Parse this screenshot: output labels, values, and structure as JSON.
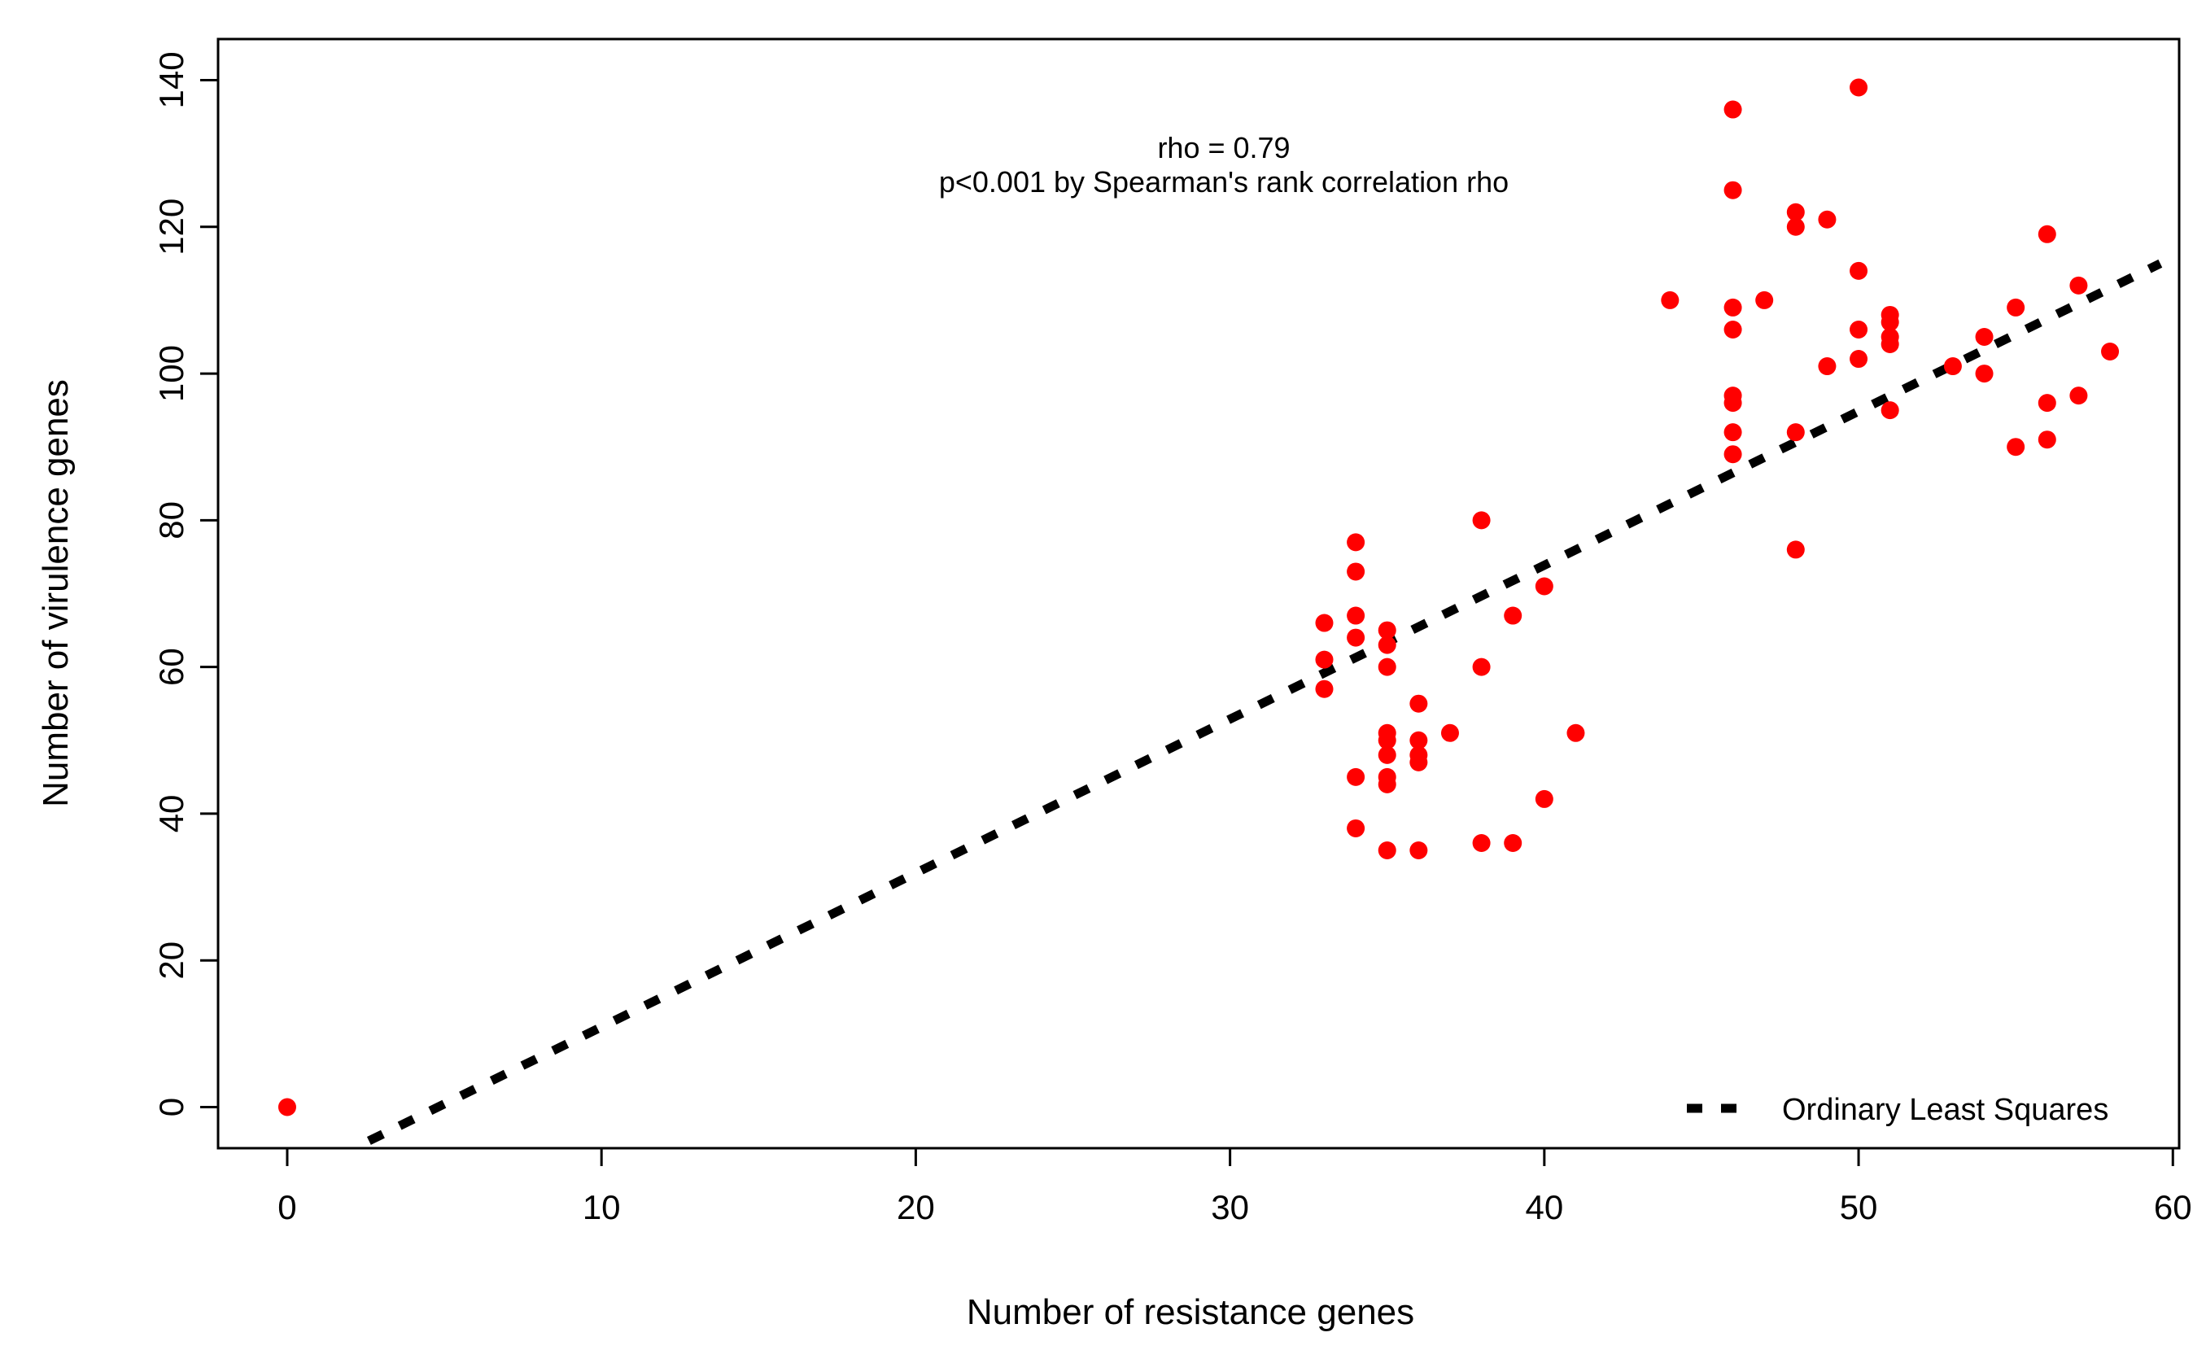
{
  "chart_data": {
    "type": "scatter",
    "xlabel": "Number of resistance genes",
    "ylabel": "Number of virulence genes",
    "xlim": [
      -2.2,
      60.2
    ],
    "ylim": [
      -5.6,
      145.6
    ],
    "xticks": [
      0,
      10,
      20,
      30,
      40,
      50,
      60
    ],
    "yticks": [
      0,
      20,
      40,
      60,
      80,
      100,
      120,
      140
    ],
    "xtick_labels": [
      "0",
      "10",
      "20",
      "30",
      "40",
      "50",
      "60"
    ],
    "ytick_labels": [
      "0",
      "20",
      "40",
      "60",
      "80",
      "100",
      "120",
      "140"
    ],
    "grid": false,
    "annotations": [
      "rho = 0.79",
      "p<0.001 by Spearman's rank correlation rho"
    ],
    "legend": {
      "position": "bottom-right",
      "entries": [
        "Ordinary Least Squares"
      ]
    },
    "point_color": "#ff0000",
    "line_color": "#000000",
    "series": [
      {
        "type": "scatter",
        "points": [
          [
            0,
            0
          ],
          [
            33,
            66
          ],
          [
            33,
            61
          ],
          [
            33,
            57
          ],
          [
            34,
            77
          ],
          [
            34,
            73
          ],
          [
            34,
            67
          ],
          [
            34,
            64
          ],
          [
            34,
            45
          ],
          [
            34,
            38
          ],
          [
            35,
            65
          ],
          [
            35,
            63
          ],
          [
            35,
            60
          ],
          [
            35,
            51
          ],
          [
            35,
            50
          ],
          [
            35,
            48
          ],
          [
            35,
            45
          ],
          [
            35,
            44
          ],
          [
            35,
            35
          ],
          [
            36,
            55
          ],
          [
            36,
            50
          ],
          [
            36,
            48
          ],
          [
            36,
            47
          ],
          [
            36,
            35
          ],
          [
            37,
            51
          ],
          [
            38,
            80
          ],
          [
            38,
            60
          ],
          [
            38,
            36
          ],
          [
            39,
            67
          ],
          [
            39,
            36
          ],
          [
            40,
            71
          ],
          [
            40,
            42
          ],
          [
            41,
            51
          ],
          [
            44,
            110
          ],
          [
            46,
            136
          ],
          [
            46,
            125
          ],
          [
            46,
            109
          ],
          [
            46,
            106
          ],
          [
            46,
            97
          ],
          [
            46,
            96
          ],
          [
            46,
            92
          ],
          [
            46,
            89
          ],
          [
            47,
            110
          ],
          [
            48,
            122
          ],
          [
            48,
            120
          ],
          [
            48,
            92
          ],
          [
            48,
            76
          ],
          [
            49,
            121
          ],
          [
            49,
            101
          ],
          [
            50,
            139
          ],
          [
            50,
            114
          ],
          [
            50,
            106
          ],
          [
            50,
            102
          ],
          [
            51,
            108
          ],
          [
            51,
            107
          ],
          [
            51,
            105
          ],
          [
            51,
            104
          ],
          [
            51,
            95
          ],
          [
            53,
            101
          ],
          [
            54,
            105
          ],
          [
            54,
            100
          ],
          [
            55,
            109
          ],
          [
            55,
            90
          ],
          [
            56,
            119
          ],
          [
            56,
            96
          ],
          [
            56,
            91
          ],
          [
            57,
            112
          ],
          [
            57,
            97
          ],
          [
            58,
            103
          ]
        ]
      },
      {
        "type": "line",
        "name": "Ordinary Least Squares",
        "style": "dashed",
        "x": [
          2.6,
          59.6
        ],
        "y": [
          -4.6,
          115.0
        ]
      }
    ]
  }
}
